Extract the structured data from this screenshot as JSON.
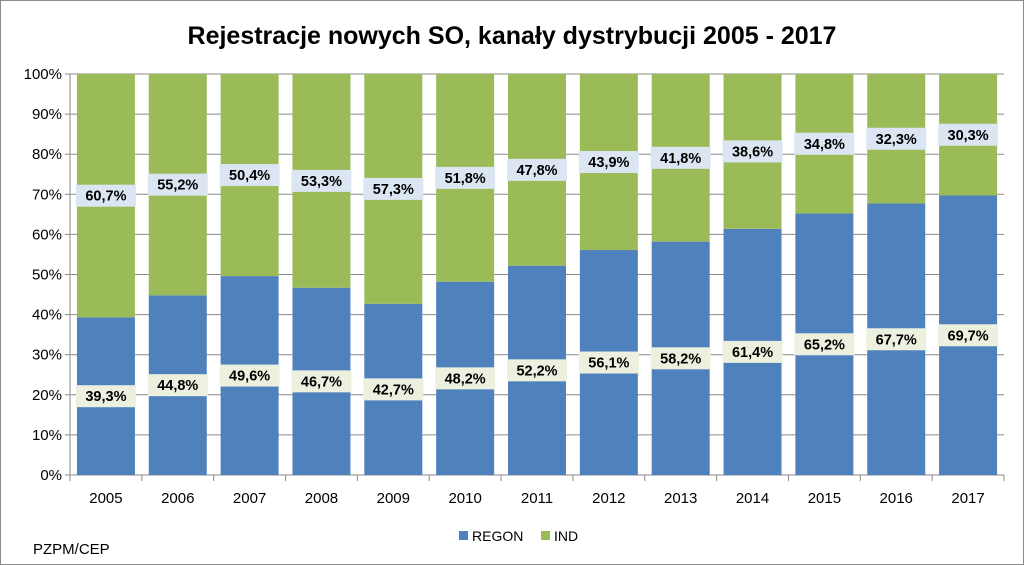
{
  "chart_data": {
    "type": "bar",
    "stacked": true,
    "percent_stacked": true,
    "title": "Rejestracje nowych SO, kanały dystrybucji 2005 - 2017",
    "categories": [
      "2005",
      "2006",
      "2007",
      "2008",
      "2009",
      "2010",
      "2011",
      "2012",
      "2013",
      "2014",
      "2015",
      "2016",
      "2017"
    ],
    "series": [
      {
        "name": "REGON",
        "color": "#4f81bd",
        "label_bg": "#ebf1de",
        "values": [
          39.3,
          44.8,
          49.6,
          46.7,
          42.7,
          48.2,
          52.2,
          56.1,
          58.2,
          61.4,
          65.2,
          67.7,
          69.7
        ],
        "labels": [
          "39,3%",
          "44,8%",
          "49,6%",
          "46,7%",
          "42,7%",
          "48,2%",
          "52,2%",
          "56,1%",
          "58,2%",
          "61,4%",
          "65,2%",
          "67,7%",
          "69,7%"
        ]
      },
      {
        "name": "IND",
        "color": "#9bbb59",
        "label_bg": "#dce6f2",
        "values": [
          60.7,
          55.2,
          50.4,
          53.3,
          57.3,
          51.8,
          47.8,
          43.9,
          41.8,
          38.6,
          34.8,
          32.3,
          30.3
        ],
        "labels": [
          "60,7%",
          "55,2%",
          "50,4%",
          "53,3%",
          "57,3%",
          "51,8%",
          "47,8%",
          "43,9%",
          "41,8%",
          "38,6%",
          "34,8%",
          "32,3%",
          "30,3%"
        ]
      }
    ],
    "ylim": [
      0,
      100
    ],
    "y_ticks": [
      "0%",
      "10%",
      "20%",
      "30%",
      "40%",
      "50%",
      "60%",
      "70%",
      "80%",
      "90%",
      "100%"
    ],
    "grid": true,
    "legend_position": "bottom",
    "xlabel": "",
    "ylabel": ""
  },
  "source": "PZPM/CEP"
}
